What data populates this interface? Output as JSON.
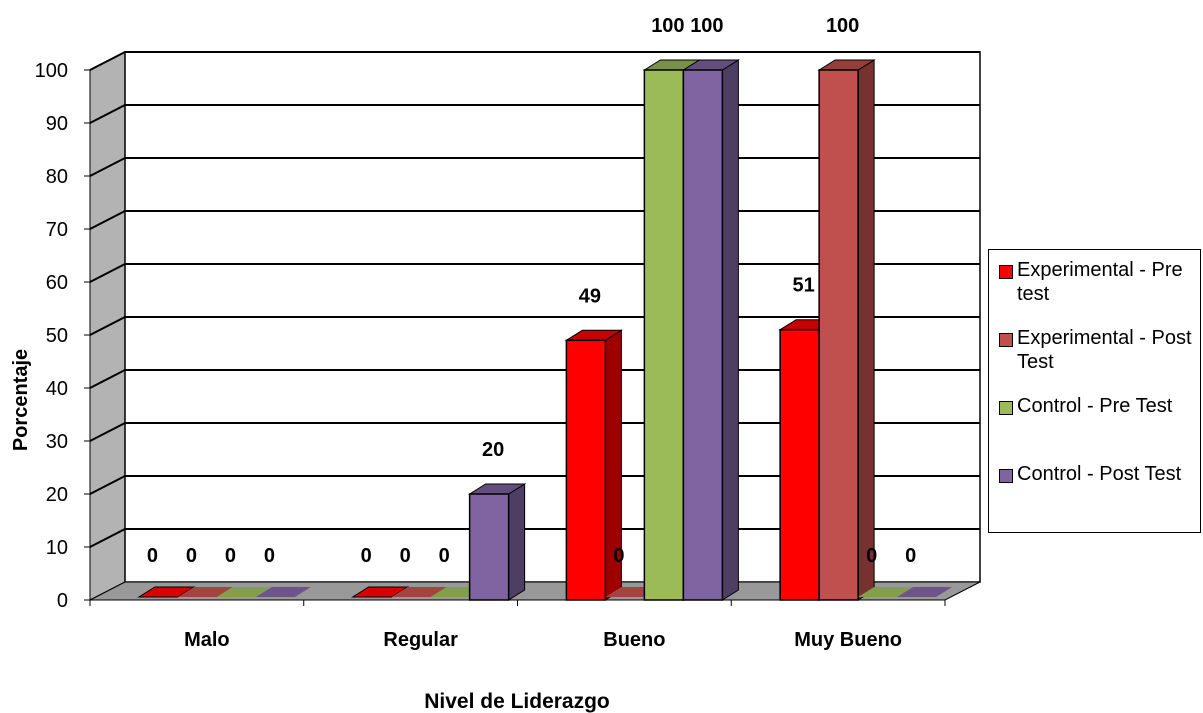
{
  "chart_data": {
    "type": "bar",
    "title": "",
    "xlabel": "Nivel de Liderazgo",
    "ylabel": "Porcentaje",
    "ylim": [
      0,
      100
    ],
    "yticks": [
      "0",
      "10",
      "20",
      "30",
      "40",
      "50",
      "60",
      "70",
      "80",
      "90",
      "100"
    ],
    "categories": [
      "Malo",
      "Regular",
      "Bueno",
      "Muy Bueno"
    ],
    "series": [
      {
        "name": "Experimental - Pre test",
        "color": "#ff0000",
        "values": [
          0,
          0,
          49,
          51
        ]
      },
      {
        "name": "Experimental - Post Test",
        "color": "#c0504d",
        "values": [
          0,
          0,
          0,
          100
        ]
      },
      {
        "name": "Control - Pre Test",
        "color": "#9bbb59",
        "values": [
          0,
          0,
          100,
          0
        ]
      },
      {
        "name": "Control - Post Test",
        "color": "#8064a2",
        "values": [
          0,
          20,
          100,
          0
        ]
      }
    ],
    "grid": true,
    "legend_position": "right",
    "data_labels": true
  }
}
